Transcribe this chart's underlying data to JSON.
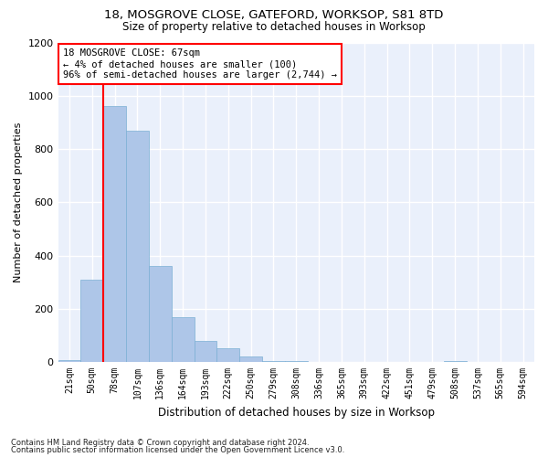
{
  "title1": "18, MOSGROVE CLOSE, GATEFORD, WORKSOP, S81 8TD",
  "title2": "Size of property relative to detached houses in Worksop",
  "xlabel": "Distribution of detached houses by size in Worksop",
  "ylabel": "Number of detached properties",
  "footnote1": "Contains HM Land Registry data © Crown copyright and database right 2024.",
  "footnote2": "Contains public sector information licensed under the Open Government Licence v3.0.",
  "annotation_line1": "18 MOSGROVE CLOSE: 67sqm",
  "annotation_line2": "← 4% of detached houses are smaller (100)",
  "annotation_line3": "96% of semi-detached houses are larger (2,744) →",
  "bar_color": "#aec6e8",
  "bar_edge_color": "#7bafd4",
  "vline_color": "red",
  "vline_x": 1.5,
  "categories": [
    "21sqm",
    "50sqm",
    "78sqm",
    "107sqm",
    "136sqm",
    "164sqm",
    "193sqm",
    "222sqm",
    "250sqm",
    "279sqm",
    "308sqm",
    "336sqm",
    "365sqm",
    "393sqm",
    "422sqm",
    "451sqm",
    "479sqm",
    "508sqm",
    "537sqm",
    "565sqm",
    "594sqm"
  ],
  "values": [
    8,
    310,
    960,
    870,
    360,
    170,
    80,
    50,
    20,
    5,
    2,
    0,
    0,
    0,
    0,
    0,
    0,
    2,
    0,
    0,
    0
  ],
  "ylim": [
    0,
    1200
  ],
  "yticks": [
    0,
    200,
    400,
    600,
    800,
    1000,
    1200
  ],
  "background_color": "#eaf0fb",
  "grid_color": "white",
  "fig_width": 6.0,
  "fig_height": 5.0,
  "dpi": 100
}
